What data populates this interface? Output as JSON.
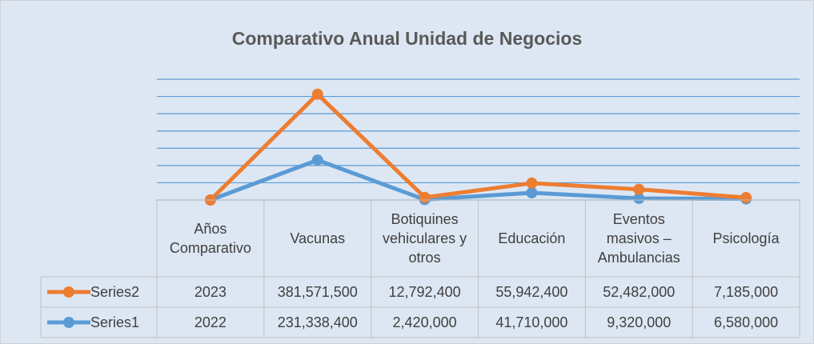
{
  "chart_data": {
    "type": "line",
    "stacked": true,
    "title": "Comparativo Anual Unidad de Negocios",
    "categories": [
      "Años Comparativo",
      "Vacunas",
      "Botiquines vehiculares y otros",
      "Educación",
      "Eventos masivos – Ambulancias",
      "Psicología"
    ],
    "series": [
      {
        "name": "Series1",
        "color": "#5b9bd5",
        "values": [
          2022,
          231338400,
          2420000,
          41710000,
          9320000,
          6580000
        ],
        "value_labels": [
          "2022",
          "231,338,400",
          "2,420,000",
          "41,710,000",
          "9,320,000",
          "6,580,000"
        ]
      },
      {
        "name": "Series2",
        "color": "#ed7d31",
        "values": [
          2023,
          381571500,
          12792400,
          55942400,
          52482000,
          7185000
        ],
        "value_labels": [
          "2023",
          "381,571,500",
          "12,792,400",
          "55,942,400",
          "52,482,000",
          "7,185,000"
        ]
      }
    ],
    "ylim": [
      0,
      700000000
    ],
    "yticks": [
      0,
      100000000,
      200000000,
      300000000,
      400000000,
      500000000,
      600000000,
      700000000
    ],
    "grid": true,
    "data_table": true
  }
}
